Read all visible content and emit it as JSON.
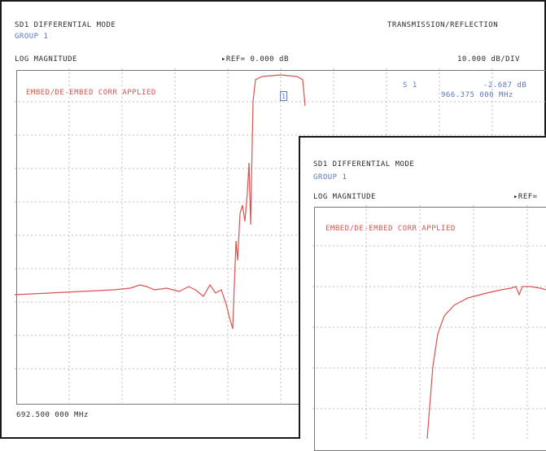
{
  "back": {
    "mode": "SD1 DIFFERENTIAL MODE",
    "group": "GROUP 1",
    "format": "LOG MAGNITUDE",
    "ref": "▸REF= 0.000 dB",
    "scale": "10.000 dB/DIV",
    "type": "TRANSMISSION/REFLECTION",
    "corr": "EMBED/DE-EMBED CORR APPLIED",
    "marker_id": "1",
    "marker_label": "S 1",
    "marker_value": "-2.687 dB",
    "marker_freq": "966.375 000 MHz",
    "start_freq": "692.500 000 MHz"
  },
  "front": {
    "mode": "SD1 DIFFERENTIAL MODE",
    "group": "GROUP 1",
    "format": "LOG MAGNITUDE",
    "ref": "▸REF=",
    "corr": "EMBED/DE-EMBED CORR APPLIED"
  },
  "colors": {
    "trace": "#d9534f",
    "grid": "#bdbdbd",
    "accent": "#5a79b8"
  }
}
